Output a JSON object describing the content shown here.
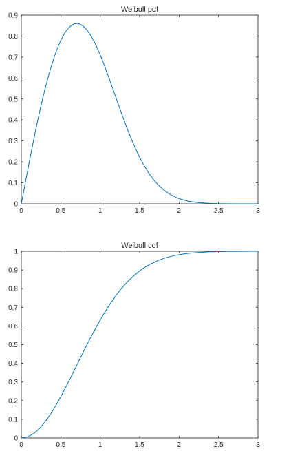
{
  "chart_data": [
    {
      "type": "line",
      "title": "Weibull pdf",
      "xlabel": "",
      "ylabel": "",
      "xlim": [
        0,
        3
      ],
      "ylim": [
        0,
        0.9
      ],
      "xticks": [
        0,
        0.5,
        1,
        1.5,
        2,
        2.5,
        3
      ],
      "xtick_labels": [
        "0",
        "0.5",
        "1",
        "1.5",
        "2",
        "2.5",
        "3"
      ],
      "yticks": [
        0,
        0.1,
        0.2,
        0.3,
        0.4,
        0.5,
        0.6,
        0.7,
        0.8,
        0.9
      ],
      "ytick_labels": [
        "0",
        "0.1",
        "0.2",
        "0.3",
        "0.4",
        "0.5",
        "0.6",
        "0.7",
        "0.8",
        "0.9"
      ],
      "grid": false,
      "series": [
        {
          "color": "#0072BD",
          "x": [
            0,
            0.1,
            0.2,
            0.3,
            0.4,
            0.5,
            0.6,
            0.7,
            0.8,
            0.9,
            1.0,
            1.1,
            1.2,
            1.3,
            1.4,
            1.5,
            1.6,
            1.7,
            1.8,
            1.9,
            2.0,
            2.1,
            2.2,
            2.3,
            2.4,
            2.5,
            2.6,
            2.7,
            2.8,
            2.9,
            3.0
          ],
          "y": [
            0,
            0.197,
            0.384,
            0.547,
            0.68,
            0.779,
            0.839,
            0.86,
            0.842,
            0.79,
            0.71,
            0.612,
            0.506,
            0.401,
            0.305,
            0.222,
            0.156,
            0.105,
            0.068,
            0.042,
            0.025,
            0.014,
            0.0077,
            0.004,
            0.002,
            0.0009,
            0.0004,
            0.0002,
            0.0001,
            0,
            0
          ]
        }
      ]
    },
    {
      "type": "line",
      "title": "Weibull cdf",
      "xlabel": "",
      "ylabel": "",
      "xlim": [
        0,
        3
      ],
      "ylim": [
        0,
        1
      ],
      "xticks": [
        0,
        0.5,
        1,
        1.5,
        2,
        2.5,
        3
      ],
      "xtick_labels": [
        "0",
        "0.5",
        "1",
        "1.5",
        "2",
        "2.5",
        "3"
      ],
      "yticks": [
        0,
        0.1,
        0.2,
        0.3,
        0.4,
        0.5,
        0.6,
        0.7,
        0.8,
        0.9,
        1
      ],
      "ytick_labels": [
        "0",
        "0.1",
        "0.2",
        "0.3",
        "0.4",
        "0.5",
        "0.6",
        "0.7",
        "0.8",
        "0.9",
        "1"
      ],
      "grid": false,
      "series": [
        {
          "color": "#0072BD",
          "x": [
            0,
            0.1,
            0.2,
            0.3,
            0.4,
            0.5,
            0.6,
            0.7,
            0.8,
            0.9,
            1.0,
            1.1,
            1.2,
            1.3,
            1.4,
            1.5,
            1.6,
            1.7,
            1.8,
            1.9,
            2.0,
            2.1,
            2.2,
            2.3,
            2.4,
            2.5,
            2.6,
            2.7,
            2.8,
            2.9,
            3.0
          ],
          "y": [
            0,
            0.01,
            0.039,
            0.086,
            0.148,
            0.221,
            0.302,
            0.387,
            0.473,
            0.555,
            0.632,
            0.702,
            0.763,
            0.816,
            0.859,
            0.895,
            0.923,
            0.944,
            0.961,
            0.973,
            0.982,
            0.988,
            0.992,
            0.995,
            0.997,
            0.998,
            0.999,
            0.9993,
            0.9996,
            0.9998,
            0.9999
          ]
        }
      ]
    }
  ]
}
